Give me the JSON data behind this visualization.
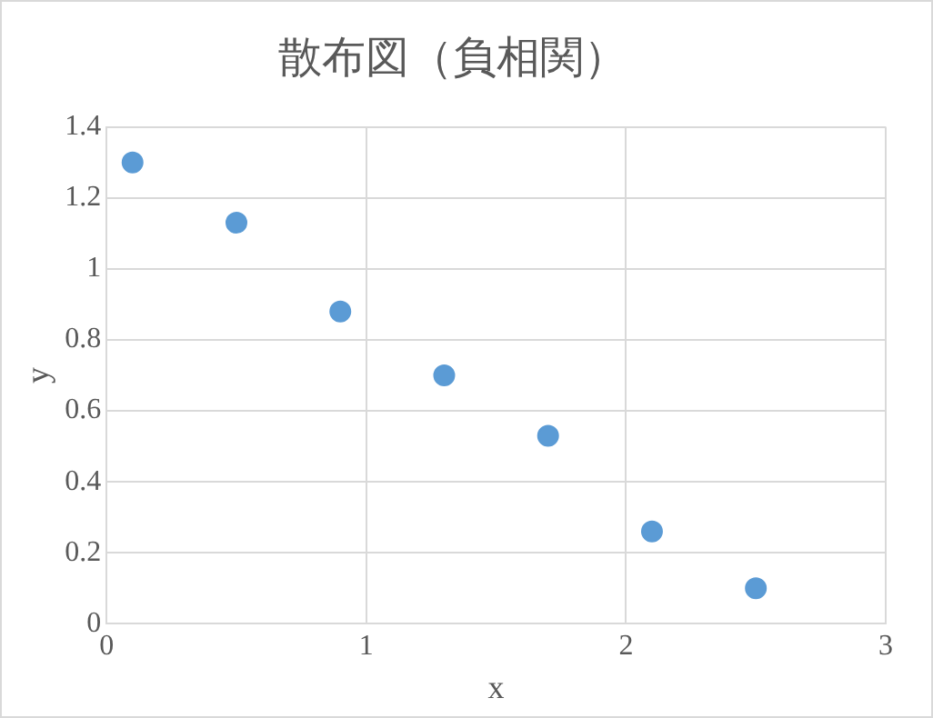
{
  "chart_data": {
    "type": "scatter",
    "title": "散布図（負相関）",
    "xlabel": "x",
    "ylabel": "y",
    "x": [
      0.1,
      0.5,
      0.9,
      1.3,
      1.7,
      2.1,
      2.5
    ],
    "series": [
      {
        "color": "#5b9bd5",
        "values": [
          1.3,
          1.13,
          0.88,
          0.7,
          0.53,
          0.26,
          0.1
        ]
      }
    ],
    "xlim": [
      0,
      3
    ],
    "xticks": [
      0,
      1,
      2,
      3
    ],
    "ylim": [
      0,
      1.4
    ],
    "yticks": [
      0,
      0.2,
      0.4,
      0.6,
      0.8,
      1,
      1.2,
      1.4
    ],
    "grid": true,
    "marker": "circle",
    "legend": false
  }
}
